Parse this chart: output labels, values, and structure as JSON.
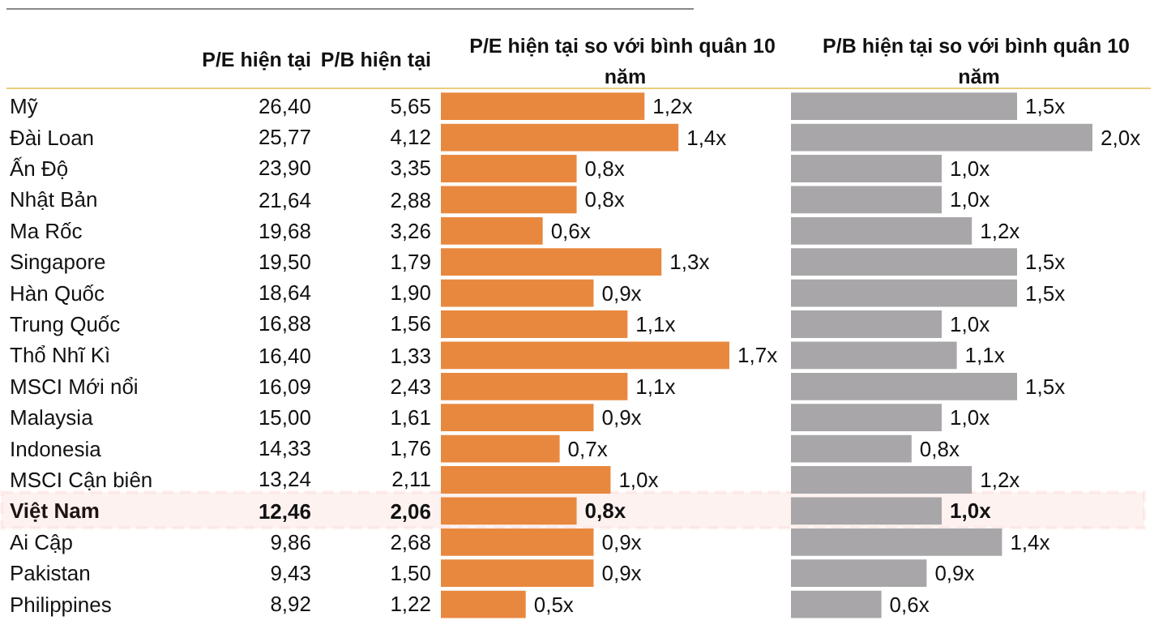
{
  "chart_data": [
    {
      "type": "bar",
      "orientation": "horizontal",
      "title": "P/E hiện tại so với bình quân 10 năm",
      "color": "#e8883f",
      "categories": [
        "Mỹ",
        "Đài Loan",
        "Ấn Độ",
        "Nhật Bản",
        "Ma Rốc",
        "Singapore",
        "Hàn Quốc",
        "Trung Quốc",
        "Thổ Nhĩ Kì",
        "MSCI Mới nổi",
        "Malaysia",
        "Indonesia",
        "MSCI Cận biên",
        "Việt Nam",
        "Ai Cập",
        "Pakistan",
        "Philippines"
      ],
      "values": [
        1.2,
        1.4,
        0.8,
        0.8,
        0.6,
        1.3,
        0.9,
        1.1,
        1.7,
        1.1,
        0.9,
        0.7,
        1.0,
        0.8,
        0.9,
        0.9,
        0.5
      ],
      "value_labels": [
        "1,2x",
        "1,4x",
        "0,8x",
        "0,8x",
        "0,6x",
        "1,3x",
        "0,9x",
        "1,1x",
        "1,7x",
        "1,1x",
        "0,9x",
        "0,7x",
        "1,0x",
        "0,8x",
        "0,9x",
        "0,9x",
        "0,5x"
      ],
      "bands": [
        {
          "axis": "y",
          "from": "Việt Nam",
          "to": "Việt Nam",
          "color": "#e8452c"
        }
      ]
    },
    {
      "type": "other",
      "title": "P/E hiện tại",
      "values": [
        26.4,
        25.77,
        23.9,
        21.64,
        19.68,
        19.5,
        18.64,
        16.88,
        16.4,
        16.09,
        15.0,
        14.33,
        13.24,
        12.46,
        9.86,
        9.43,
        8.92
      ],
      "value_labels": [
        "26,40",
        "25,77",
        "23,90",
        "21,64",
        "19,68",
        "19,50",
        "18,64",
        "16,88",
        "16,40",
        "16,09",
        "15,00",
        "14,33",
        "13,24",
        "12,46",
        "9,86",
        "9,43",
        "8,92"
      ]
    },
    {
      "type": "other",
      "title": "P/B hiện tại",
      "values": [
        5.65,
        4.12,
        3.35,
        2.88,
        3.26,
        1.79,
        1.9,
        1.56,
        1.33,
        2.43,
        1.61,
        1.76,
        2.11,
        2.06,
        2.68,
        1.5,
        1.22
      ],
      "value_labels": [
        "5,65",
        "4,12",
        "3,35",
        "2,88",
        "3,26",
        "1,79",
        "1,90",
        "1,56",
        "1,33",
        "2,43",
        "1,61",
        "1,76",
        "2,11",
        "2,06",
        "2,68",
        "1,50",
        "1,22"
      ]
    },
    {
      "type": "bar",
      "orientation": "horizontal",
      "title": "P/B hiện tại so với bình quân 10 năm",
      "color": "#a8a6a9",
      "categories": [
        null,
        null,
        null,
        null,
        null,
        null,
        null,
        null,
        null,
        null,
        null,
        null,
        null,
        null,
        null,
        null,
        null
      ],
      "values": [
        1.5,
        2.0,
        1.0,
        1.0,
        1.2,
        1.5,
        1.5,
        1.0,
        1.1,
        1.5,
        1.0,
        0.8,
        1.2,
        1.0,
        1.4,
        0.9,
        0.6
      ],
      "value_labels": [
        "1,5x",
        "2,0x",
        "1,0x",
        "1,0x",
        "1,2x",
        "1,5x",
        "1,5x",
        "1,0x",
        "1,1x",
        "1,5x",
        "1,0x",
        "0,8x",
        "1,2x",
        "1,0x",
        "1,4x",
        "0,9x",
        "0,6x"
      ]
    }
  ]
}
